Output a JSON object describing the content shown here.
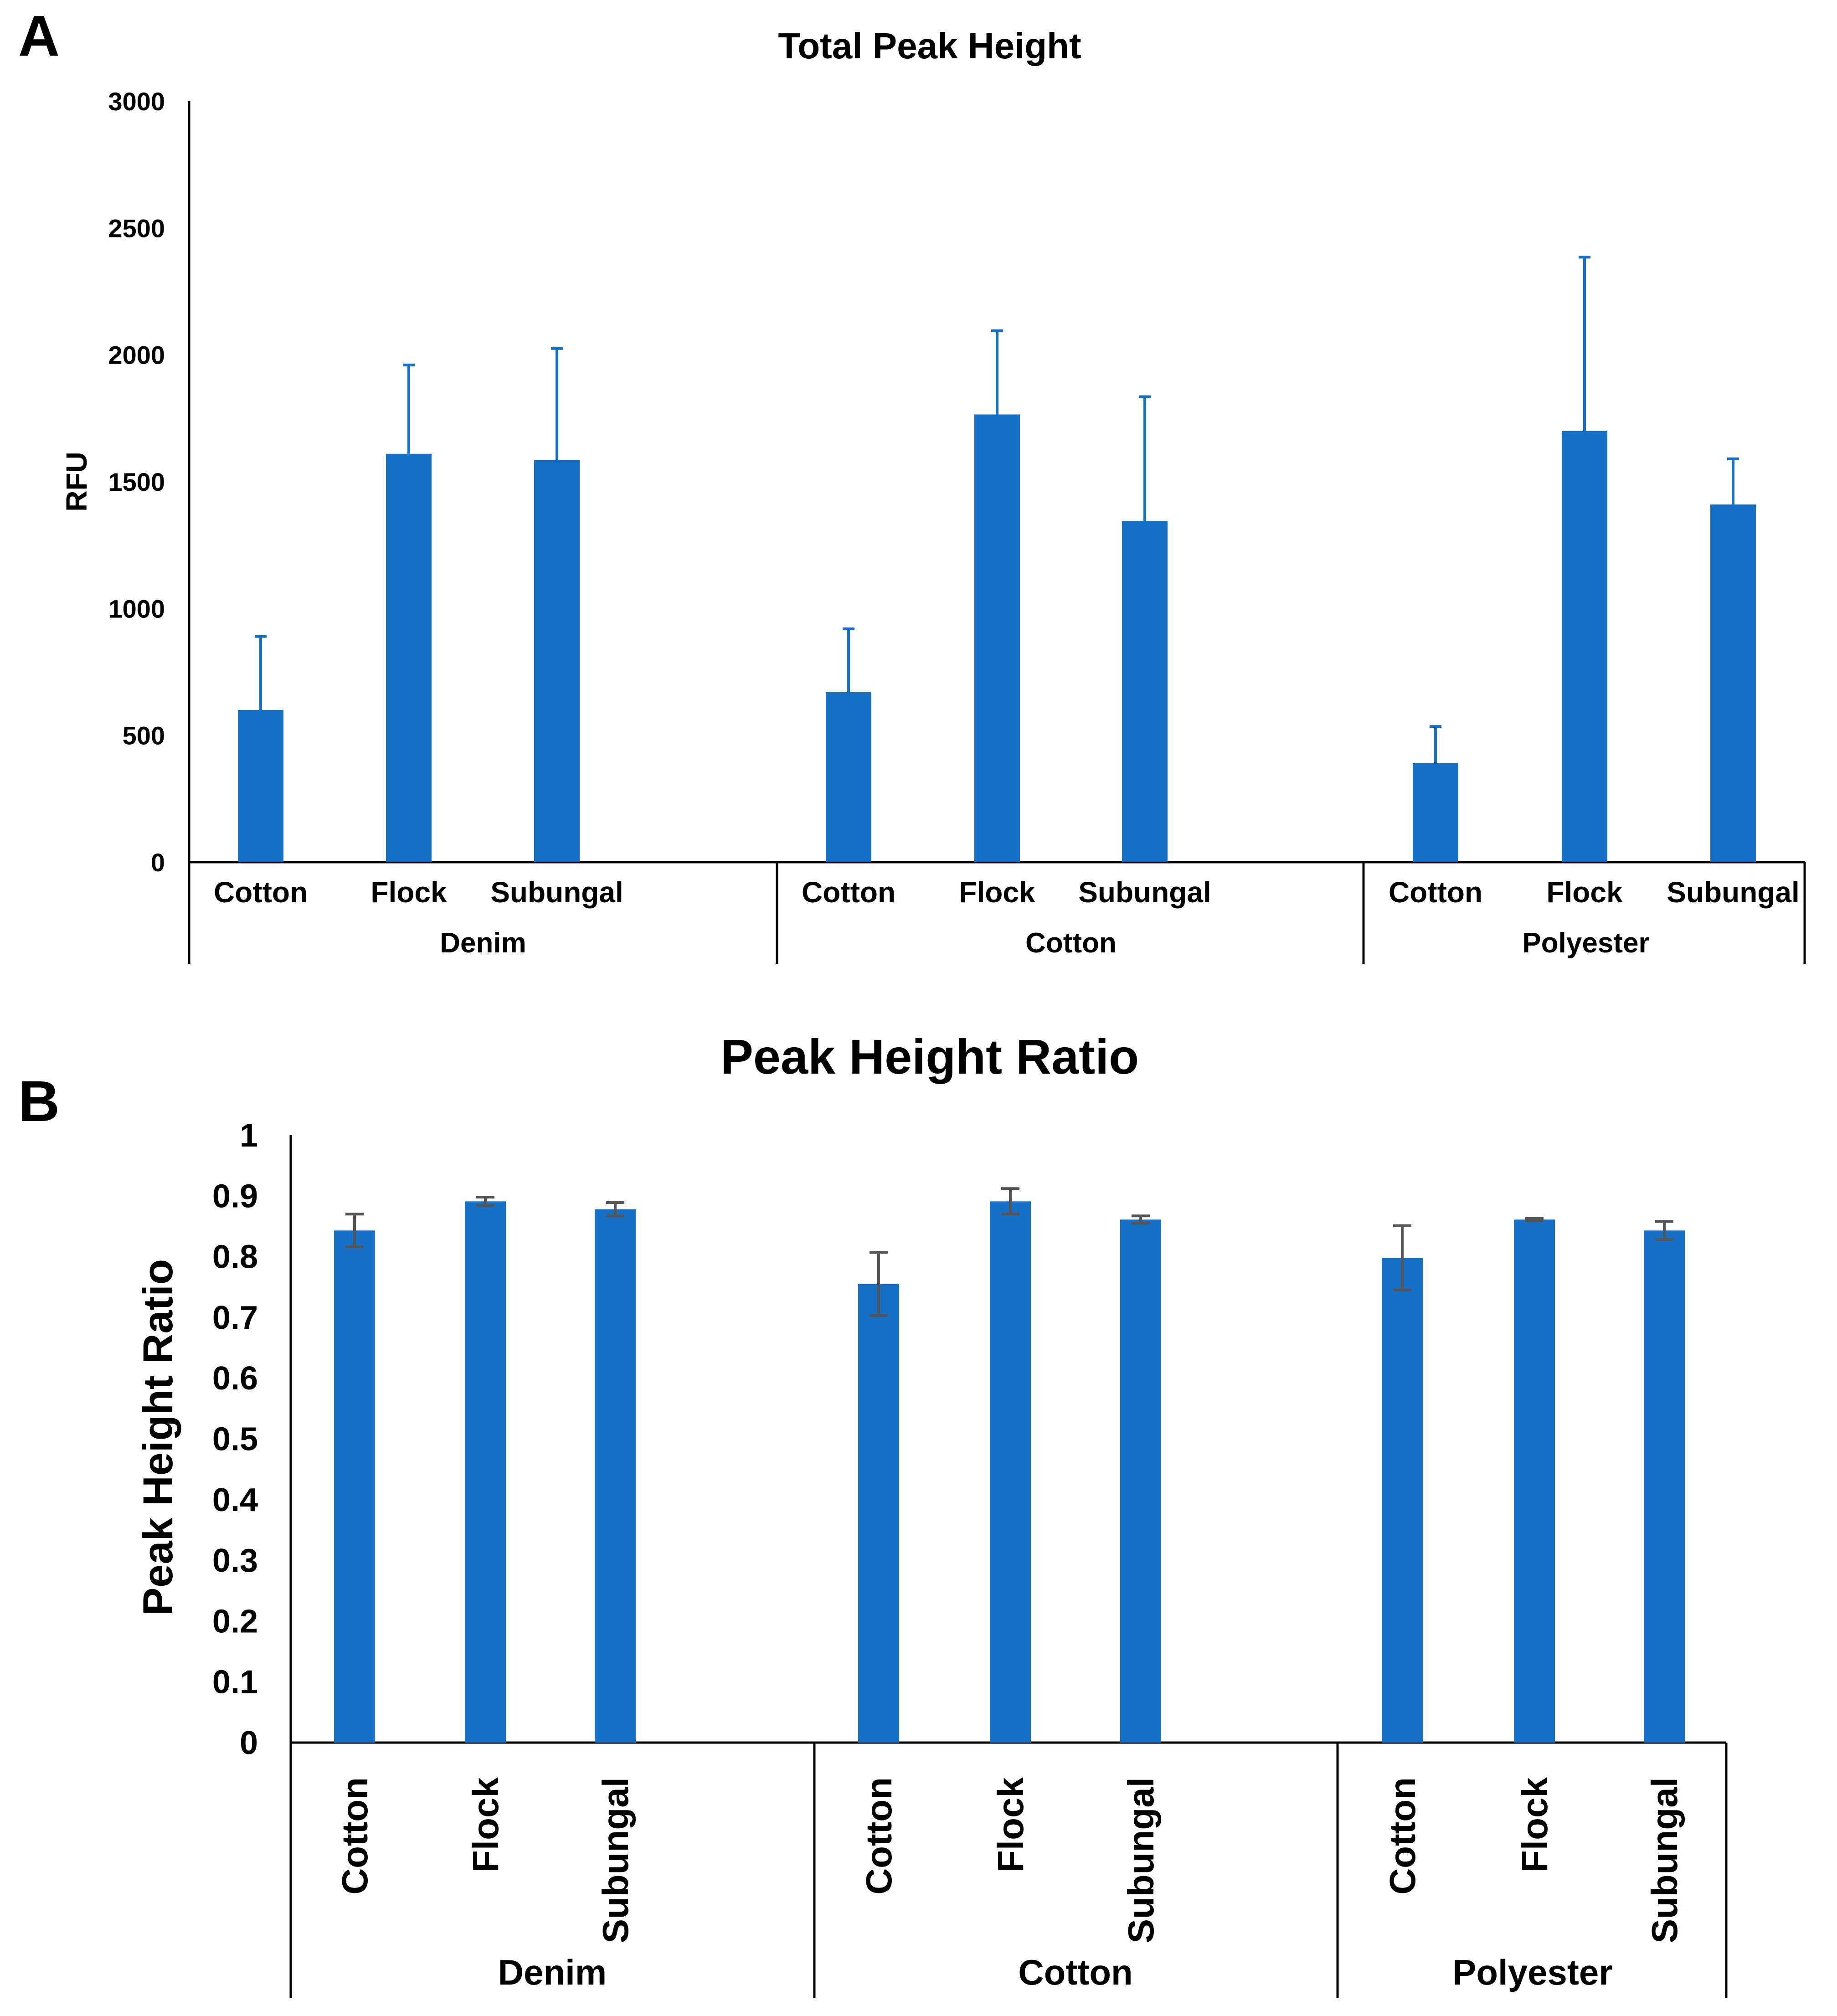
{
  "colors": {
    "bar": "#1770C8",
    "error_a": "#1770C8",
    "error_b": "#555555",
    "axis": "#000000"
  },
  "chart_data": [
    {
      "panel": "A",
      "type": "bar",
      "title": "Total Peak Height",
      "ylabel": "RFU",
      "xlabel": "",
      "ylim": [
        0,
        3000
      ],
      "yticks": [
        "0",
        "500",
        "1000",
        "1500",
        "2000",
        "2500",
        "3000"
      ],
      "groups": [
        {
          "name": "Denim",
          "categories": [
            "Cotton",
            "Flock",
            "Subungal"
          ],
          "values": [
            600,
            1610,
            1585
          ],
          "errors": [
            290,
            350,
            440
          ]
        },
        {
          "name": "Cotton",
          "categories": [
            "Cotton",
            "Flock",
            "Subungal"
          ],
          "values": [
            670,
            1765,
            1345
          ],
          "errors": [
            250,
            330,
            490
          ]
        },
        {
          "name": "Polyester",
          "categories": [
            "Cotton",
            "Flock",
            "Subungal"
          ],
          "values": [
            390,
            1700,
            1410
          ],
          "errors": [
            145,
            685,
            180
          ]
        }
      ],
      "grid": false,
      "legend": "none"
    },
    {
      "panel": "B",
      "type": "bar",
      "title": "Peak Height Ratio",
      "ylabel": "Peak Height Ratio",
      "xlabel": "",
      "ylim": [
        0,
        1
      ],
      "yticks": [
        "0",
        "0.1",
        "0.2",
        "0.3",
        "0.4",
        "0.5",
        "0.6",
        "0.7",
        "0.8",
        "0.9",
        "1"
      ],
      "groups": [
        {
          "name": "Denim",
          "categories": [
            "Cotton",
            "Flock",
            "Subungal"
          ],
          "values": [
            0.843,
            0.891,
            0.878
          ],
          "errors": [
            0.027,
            0.007,
            0.011
          ]
        },
        {
          "name": "Cotton",
          "categories": [
            "Cotton",
            "Flock",
            "Subungal"
          ],
          "values": [
            0.755,
            0.891,
            0.861
          ],
          "errors": [
            0.052,
            0.021,
            0.006
          ]
        },
        {
          "name": "Polyester",
          "categories": [
            "Cotton",
            "Flock",
            "Subungal"
          ],
          "values": [
            0.798,
            0.861,
            0.843
          ],
          "errors": [
            0.053,
            0.002,
            0.015
          ]
        }
      ],
      "grid": false,
      "legend": "none"
    }
  ]
}
